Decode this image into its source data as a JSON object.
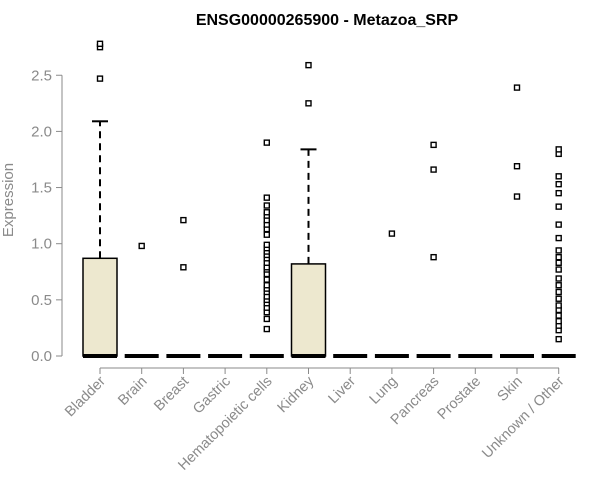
{
  "chart_data": {
    "type": "box",
    "title": "ENSG00000265900 - Metazoa_SRP",
    "xlabel": "",
    "ylabel": "Expression",
    "ylim": [
      0,
      2.8
    ],
    "yticks": [
      "0.0",
      "0.5",
      "1.0",
      "1.5",
      "2.0",
      "2.5"
    ],
    "box_fill": "#ede8cf",
    "categories": [
      "Bladder",
      "Brain",
      "Breast",
      "Gastric",
      "Hematopoietic cells",
      "Kidney",
      "Liver",
      "Lung",
      "Pancreas",
      "Prostate",
      "Skin",
      "Unknown / Other"
    ],
    "boxes": [
      {
        "q1": 0,
        "median": 0,
        "q3": 0.87,
        "whisker_low": 0,
        "whisker_high": 2.09,
        "outliers": [
          2.47,
          2.75,
          2.78
        ]
      },
      {
        "q1": 0,
        "median": 0,
        "q3": 0,
        "whisker_low": 0,
        "whisker_high": 0,
        "outliers": [
          0.98
        ]
      },
      {
        "q1": 0,
        "median": 0,
        "q3": 0,
        "whisker_low": 0,
        "whisker_high": 0,
        "outliers": [
          0.79,
          1.21
        ]
      },
      {
        "q1": 0,
        "median": 0,
        "q3": 0,
        "whisker_low": 0,
        "whisker_high": 0,
        "outliers": []
      },
      {
        "q1": 0,
        "median": 0,
        "q3": 0,
        "whisker_low": 0,
        "whisker_high": 0,
        "outliers": [
          0.24,
          0.33,
          0.39,
          0.43,
          0.47,
          0.5,
          0.53,
          0.57,
          0.6,
          0.63,
          0.68,
          0.73,
          0.77,
          0.79,
          0.83,
          0.87,
          0.9,
          0.93,
          0.96,
          0.99,
          1.08,
          1.13,
          1.17,
          1.21,
          1.25,
          1.28,
          1.34,
          1.41,
          1.9
        ]
      },
      {
        "q1": 0,
        "median": 0,
        "q3": 0.82,
        "whisker_low": 0,
        "whisker_high": 1.84,
        "outliers": [
          2.25,
          2.59
        ]
      },
      {
        "q1": 0,
        "median": 0,
        "q3": 0,
        "whisker_low": 0,
        "whisker_high": 0,
        "outliers": []
      },
      {
        "q1": 0,
        "median": 0,
        "q3": 0,
        "whisker_low": 0,
        "whisker_high": 0,
        "outliers": [
          1.09
        ]
      },
      {
        "q1": 0,
        "median": 0,
        "q3": 0,
        "whisker_low": 0,
        "whisker_high": 0,
        "outliers": [
          0.88,
          1.66,
          1.88
        ]
      },
      {
        "q1": 0,
        "median": 0,
        "q3": 0,
        "whisker_low": 0,
        "whisker_high": 0,
        "outliers": []
      },
      {
        "q1": 0,
        "median": 0,
        "q3": 0,
        "whisker_low": 0,
        "whisker_high": 0,
        "outliers": [
          1.42,
          1.69,
          2.39
        ]
      },
      {
        "q1": 0,
        "median": 0,
        "q3": 0,
        "whisker_low": 0,
        "whisker_high": 0,
        "outliers": [
          0.15,
          0.23,
          0.27,
          0.31,
          0.36,
          0.41,
          0.45,
          0.51,
          0.57,
          0.63,
          0.69,
          0.77,
          0.83,
          0.88,
          0.94,
          1.05,
          1.17,
          1.33,
          1.45,
          1.53,
          1.6,
          1.8,
          1.84
        ]
      }
    ]
  }
}
